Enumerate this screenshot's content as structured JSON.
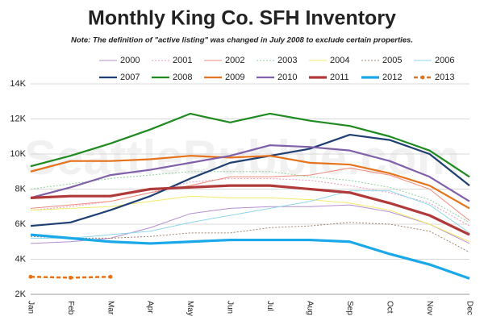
{
  "chart_data": {
    "type": "line",
    "title": "Monthly King Co. SFH Inventory",
    "subtitle": "Note: The definition of \"active listing\" was changed in July 2008 to exclude certain properties.",
    "watermark": "SeattleBubble.com",
    "categories": [
      "Jan",
      "Feb",
      "Mar",
      "Apr",
      "May",
      "Jun",
      "Jul",
      "Aug",
      "Sep",
      "Oct",
      "Nov",
      "Dec"
    ],
    "ylim": [
      2000,
      14000
    ],
    "yticks": [
      {
        "value": 2000,
        "label": "2K"
      },
      {
        "value": 4000,
        "label": "4K"
      },
      {
        "value": 6000,
        "label": "6K"
      },
      {
        "value": 8000,
        "label": "8K"
      },
      {
        "value": 10000,
        "label": "10K"
      },
      {
        "value": 12000,
        "label": "12K"
      },
      {
        "value": 14000,
        "label": "14K"
      }
    ],
    "grid": true,
    "legend": "top",
    "series": [
      {
        "name": "2000",
        "color": "#b48fd0",
        "line_style": "solid",
        "values": [
          4900,
          5000,
          5200,
          5800,
          6600,
          6900,
          7000,
          7000,
          7100,
          6700,
          6000,
          4900
        ]
      },
      {
        "name": "2001",
        "color": "#e89ac0",
        "line_style": "dotted",
        "values": [
          6800,
          7000,
          7300,
          7800,
          8400,
          8600,
          8600,
          8500,
          8200,
          7800,
          7200,
          5900
        ]
      },
      {
        "name": "2002",
        "color": "#ef8a7c",
        "line_style": "solid",
        "values": [
          6900,
          7100,
          7300,
          7800,
          8200,
          8700,
          8700,
          8800,
          9200,
          8800,
          8000,
          6200
        ]
      },
      {
        "name": "2003",
        "color": "#8fd09a",
        "line_style": "dotted",
        "values": [
          8000,
          8300,
          8600,
          8800,
          9000,
          9000,
          9000,
          8700,
          8500,
          8100,
          7400,
          6100
        ]
      },
      {
        "name": "2004",
        "color": "#f2ea6a",
        "line_style": "solid",
        "values": [
          6800,
          6900,
          7000,
          7300,
          7600,
          7500,
          7500,
          7400,
          7200,
          6800,
          6000,
          5000
        ]
      },
      {
        "name": "2005",
        "color": "#a08270",
        "line_style": "dotted",
        "values": [
          5300,
          5200,
          5200,
          5300,
          5500,
          5500,
          5800,
          5900,
          6100,
          6000,
          5600,
          4400
        ]
      },
      {
        "name": "2006",
        "color": "#8fd6ea",
        "line_style": "solid",
        "values": [
          5200,
          5200,
          5400,
          5600,
          6100,
          6500,
          6900,
          7300,
          7900,
          7900,
          7100,
          5500
        ]
      },
      {
        "name": "2007",
        "color": "#1f3f73",
        "line_style": "thick",
        "values": [
          5900,
          6100,
          6800,
          7600,
          8600,
          9500,
          9900,
          10300,
          11100,
          10800,
          10000,
          8200
        ]
      },
      {
        "name": "2008",
        "color": "#1f8a1f",
        "line_style": "thick",
        "values": [
          9300,
          9900,
          10600,
          11400,
          12300,
          11800,
          12300,
          11900,
          11600,
          11000,
          10200,
          8700
        ]
      },
      {
        "name": "2009",
        "color": "#e5731b",
        "line_style": "thick",
        "values": [
          9000,
          9600,
          9600,
          9700,
          9900,
          9800,
          9900,
          9500,
          9400,
          8900,
          8200,
          6900
        ]
      },
      {
        "name": "2010",
        "color": "#8060a8",
        "line_style": "thick",
        "values": [
          7500,
          8100,
          8800,
          9100,
          9500,
          9900,
          10500,
          10400,
          10200,
          9600,
          8700,
          7300
        ]
      },
      {
        "name": "2011",
        "color": "#b03a3a",
        "line_style": "heavy",
        "values": [
          7500,
          7600,
          7600,
          8000,
          8100,
          8200,
          8200,
          8000,
          7800,
          7200,
          6500,
          5400
        ]
      },
      {
        "name": "2012",
        "color": "#1aa8e8",
        "line_style": "heavy",
        "values": [
          5400,
          5200,
          5000,
          4900,
          5000,
          5100,
          5100,
          5100,
          5000,
          4300,
          3700,
          2900
        ]
      },
      {
        "name": "2013",
        "color": "#e5731b",
        "line_style": "dashed",
        "marker": "circle",
        "values": [
          3000,
          2950,
          3000,
          null,
          null,
          null,
          null,
          null,
          null,
          null,
          null,
          null
        ]
      }
    ]
  }
}
